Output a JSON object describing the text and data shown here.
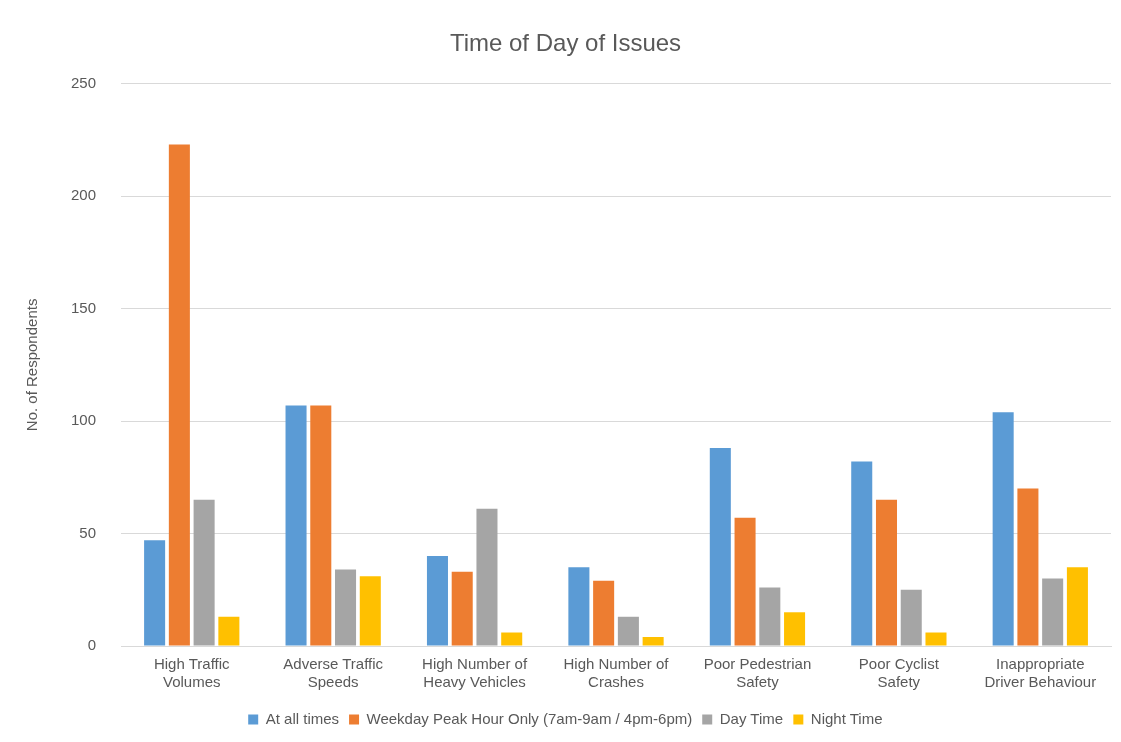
{
  "chart_data": {
    "type": "bar",
    "title": "Time of Day of Issues",
    "ylabel": "No. of Respondents",
    "categories": [
      "High Traffic Volumes",
      "Adverse Traffic Speeds",
      "High Number of Heavy Vehicles",
      "High Number of Crashes",
      "Poor Pedestrian Safety",
      "Poor Cyclist Safety",
      "Inappropriate Driver Behaviour"
    ],
    "series": [
      {
        "name": "At all times",
        "color": "#5b9bd5",
        "values": [
          47,
          107,
          40,
          35,
          88,
          82,
          104
        ]
      },
      {
        "name": "Weekday Peak Hour Only (7am-9am / 4pm-6pm)",
        "color": "#ed7d31",
        "values": [
          223,
          107,
          33,
          29,
          57,
          65,
          70
        ]
      },
      {
        "name": "Day Time",
        "color": "#a5a5a5",
        "values": [
          65,
          34,
          61,
          13,
          26,
          25,
          30
        ]
      },
      {
        "name": "Night Time",
        "color": "#ffc000",
        "values": [
          13,
          31,
          6,
          4,
          15,
          6,
          35
        ]
      }
    ],
    "ylim": [
      0,
      250
    ],
    "yticks": [
      0,
      50,
      100,
      150,
      200,
      250
    ],
    "grid": "y",
    "legend": "bottom"
  }
}
